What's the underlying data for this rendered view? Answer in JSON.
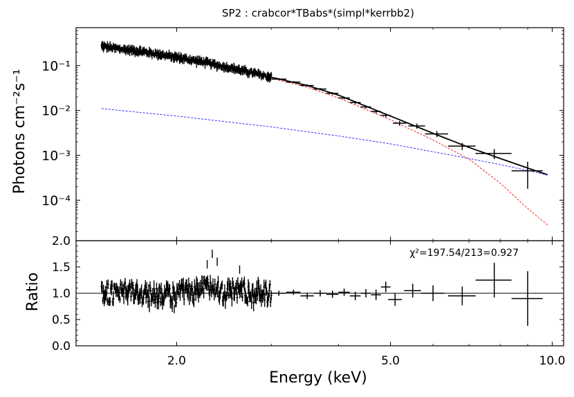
{
  "chart_data": [
    {
      "type": "scatter",
      "panel": "top",
      "title": "SP2 : crabcor*TBabs*(simpl*kerrbb2)",
      "xlabel": "",
      "ylabel": "Photons cm⁻²s⁻¹",
      "xscale": "log",
      "yscale": "log",
      "xlim": [
        1.3,
        10.5
      ],
      "ylim": [
        1.25e-05,
        0.7
      ],
      "ytick_labels": [
        "10⁻¹",
        "10⁻²",
        "10⁻³",
        "10⁻⁴"
      ],
      "ytick_values": [
        0.1,
        0.01,
        0.001,
        0.0001
      ],
      "series": [
        {
          "role": "data",
          "color": "#000000",
          "lowres_x": [
            1.45,
            1.55,
            1.65,
            1.75,
            1.85,
            1.95,
            2.05,
            2.15,
            2.25,
            2.35,
            2.45,
            2.55,
            2.65,
            2.75,
            2.85,
            2.95
          ],
          "lowres_y": [
            0.27,
            0.24,
            0.22,
            0.2,
            0.18,
            0.16,
            0.145,
            0.13,
            0.12,
            0.105,
            0.095,
            0.086,
            0.077,
            0.07,
            0.063,
            0.057
          ],
          "x": [
            3.1,
            3.3,
            3.5,
            3.7,
            3.9,
            4.1,
            4.3,
            4.5,
            4.7,
            4.9,
            5.2,
            5.6,
            6.1,
            6.8,
            7.8,
            9.0
          ],
          "y": [
            0.05,
            0.043,
            0.036,
            0.03,
            0.024,
            0.019,
            0.015,
            0.012,
            0.0095,
            0.0078,
            0.0052,
            0.0045,
            0.003,
            0.0016,
            0.0011,
            0.00045
          ],
          "xerr": [
            0.1,
            0.1,
            0.1,
            0.1,
            0.1,
            0.1,
            0.1,
            0.1,
            0.1,
            0.1,
            0.15,
            0.2,
            0.3,
            0.4,
            0.6,
            0.6
          ],
          "yerr_frac": [
            0.05,
            0.05,
            0.06,
            0.06,
            0.07,
            0.07,
            0.08,
            0.08,
            0.1,
            0.1,
            0.12,
            0.13,
            0.15,
            0.18,
            0.25,
            0.6
          ]
        },
        {
          "role": "total model",
          "color": "#000000",
          "x": [
            1.45,
            2.0,
            2.5,
            3.0,
            3.5,
            4.0,
            5.0,
            6.0,
            7.0,
            8.0,
            9.0,
            9.8
          ],
          "y": [
            0.27,
            0.155,
            0.095,
            0.055,
            0.036,
            0.022,
            0.0075,
            0.0031,
            0.0015,
            0.00085,
            0.00052,
            0.00037
          ]
        },
        {
          "role": "disk component",
          "color": "#ff2020",
          "dash": "3,2",
          "x": [
            1.45,
            2.0,
            2.5,
            3.0,
            3.5,
            4.0,
            5.0,
            6.0,
            7.0,
            8.0,
            9.0,
            9.8
          ],
          "y": [
            0.26,
            0.148,
            0.088,
            0.052,
            0.033,
            0.019,
            0.0062,
            0.0022,
            0.00082,
            0.00024,
            6.5e-05,
            2.8e-05
          ]
        },
        {
          "role": "power-law component",
          "color": "#3030ff",
          "dash": "3,2",
          "x": [
            1.45,
            2.0,
            3.0,
            4.0,
            5.0,
            6.0,
            7.0,
            8.0,
            9.0,
            9.8
          ],
          "y": [
            0.011,
            0.0075,
            0.0043,
            0.0027,
            0.0018,
            0.0012,
            0.00085,
            0.00062,
            0.00046,
            0.00036
          ]
        }
      ]
    },
    {
      "type": "scatter",
      "panel": "bottom",
      "title": "",
      "xlabel": "Energy (keV)",
      "ylabel": "Ratio",
      "xscale": "log",
      "xlim": [
        1.3,
        10.5
      ],
      "ylim": [
        0.0,
        2.0
      ],
      "xtick_labels": [
        "2.0",
        "5.0",
        "10.0"
      ],
      "xtick_values": [
        2.0,
        5.0,
        10.0
      ],
      "ytick_labels": [
        "0.0",
        "0.5",
        "1.0",
        "1.5",
        "2.0"
      ],
      "ytick_values": [
        0.0,
        0.5,
        1.0,
        1.5,
        2.0
      ],
      "reference_line": 1.0,
      "annotation": "χ²=197.54/213=0.927",
      "series": [
        {
          "role": "ratio",
          "color": "#000000",
          "lowres_x": [
            1.45,
            1.55,
            1.65,
            1.75,
            1.85,
            1.95,
            2.05,
            2.15,
            2.25,
            2.35,
            2.45,
            2.55,
            2.65,
            2.75,
            2.85,
            2.95
          ],
          "lowres_y": [
            1.02,
            0.98,
            1.05,
            0.95,
            1.0,
            0.93,
            1.04,
            0.97,
            1.1,
            1.15,
            1.0,
            1.05,
            1.08,
            0.96,
            1.02,
            1.0
          ],
          "x": [
            3.1,
            3.3,
            3.5,
            3.7,
            3.9,
            4.1,
            4.3,
            4.5,
            4.7,
            4.9,
            5.1,
            5.5,
            6.0,
            6.8,
            7.8,
            9.0
          ],
          "y": [
            1.0,
            1.02,
            0.95,
            1.0,
            0.98,
            1.02,
            0.95,
            1.0,
            0.97,
            1.12,
            0.88,
            1.05,
            1.0,
            0.95,
            1.25,
            0.9
          ],
          "xerr": [
            0.1,
            0.1,
            0.1,
            0.1,
            0.1,
            0.1,
            0.1,
            0.1,
            0.1,
            0.1,
            0.15,
            0.2,
            0.3,
            0.4,
            0.6,
            0.6
          ],
          "yerr": [
            0.05,
            0.05,
            0.06,
            0.06,
            0.07,
            0.07,
            0.08,
            0.08,
            0.1,
            0.1,
            0.12,
            0.13,
            0.15,
            0.18,
            0.33,
            0.52
          ]
        }
      ]
    }
  ]
}
